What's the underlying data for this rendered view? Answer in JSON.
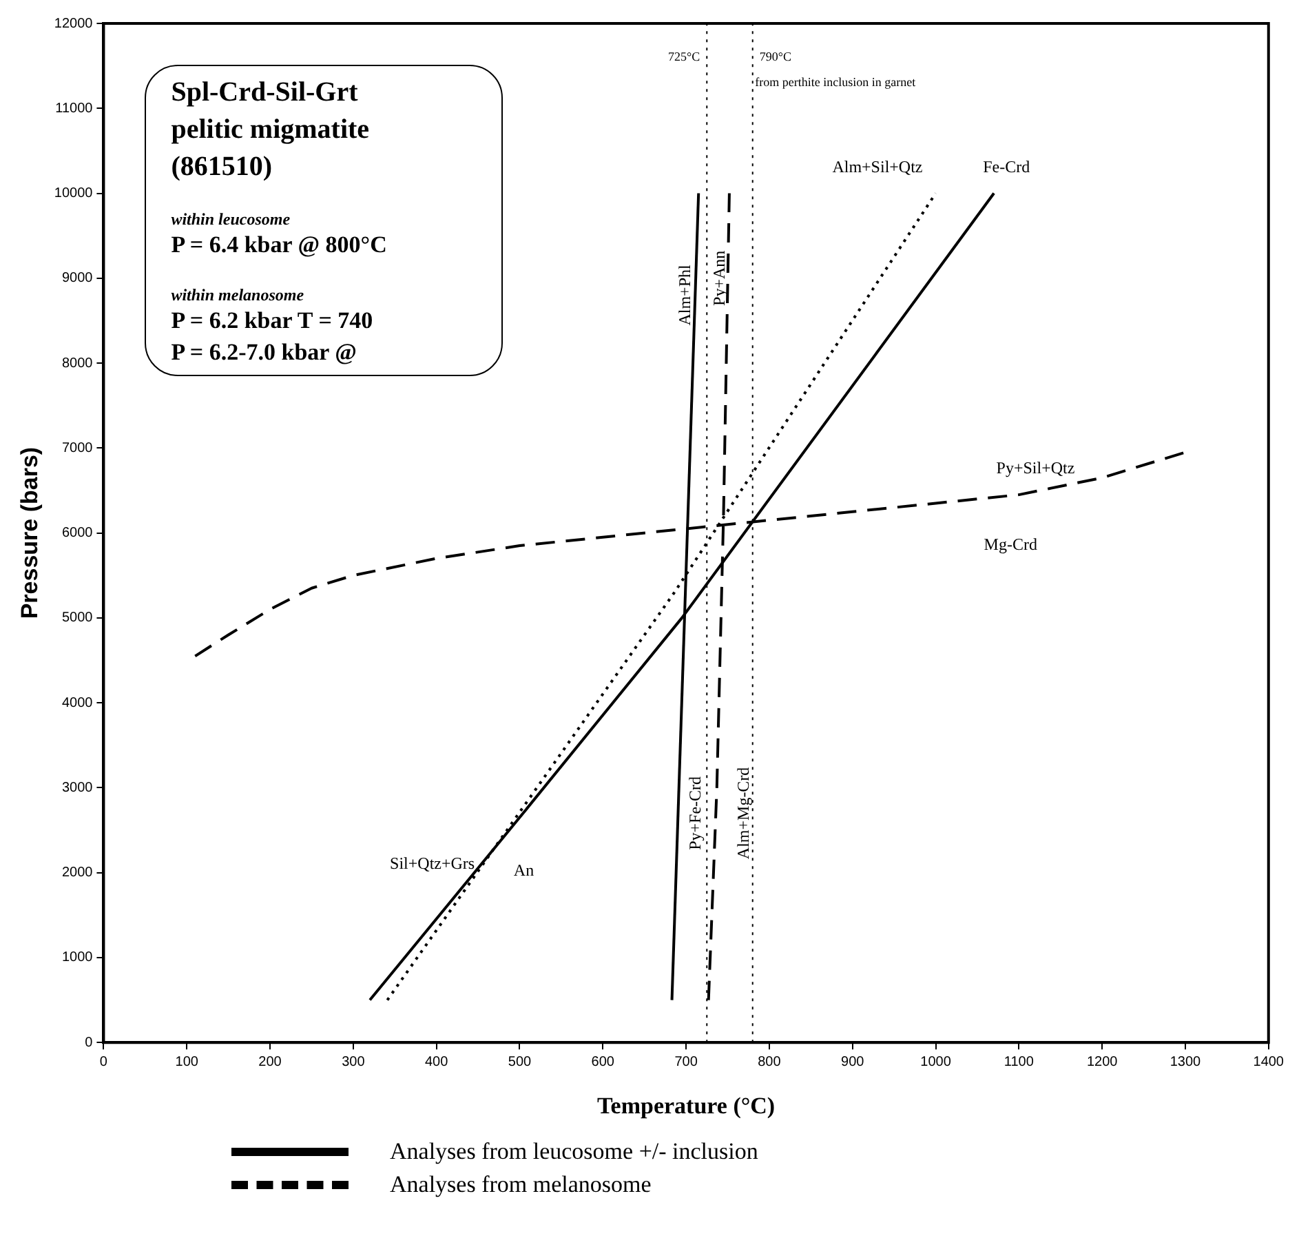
{
  "chart_data": {
    "type": "line",
    "xlabel": "Temperature (°C)",
    "ylabel": "Pressure (bars)",
    "xlim": [
      0,
      1400
    ],
    "xticks": [
      0,
      100,
      200,
      300,
      400,
      500,
      600,
      700,
      800,
      900,
      1000,
      1100,
      1200,
      1300,
      1400
    ],
    "ylim": [
      0,
      12000
    ],
    "yticks": [
      0,
      1000,
      2000,
      3000,
      4000,
      5000,
      6000,
      7000,
      8000,
      9000,
      10000,
      11000,
      12000
    ],
    "grid": false,
    "legend": "bottom",
    "marker": "none",
    "series": [
      {
        "name": "Analyses from leucosome +/- inclusion",
        "color": "#000000",
        "line_style": "solid",
        "x": [
          320,
          500,
          695,
          1070
        ],
        "values": [
          500,
          2650,
          5000,
          10000
        ]
      },
      {
        "color": "#000000",
        "line_style": "solid",
        "x": [
          683,
          715
        ],
        "values": [
          500,
          10000
        ]
      },
      {
        "color": "#000000",
        "line_style": "dotted",
        "x": [
          341,
          686,
          1000
        ],
        "values": [
          500,
          5300,
          10000
        ]
      },
      {
        "color": "#000000",
        "line_style": "dashed",
        "x": [
          727,
          737,
          745,
          752
        ],
        "values": [
          500,
          3000,
          6200,
          10000
        ]
      },
      {
        "name": "Analyses from melanosome",
        "color": "#000000",
        "line_style": "dashed",
        "x": [
          110,
          150,
          200,
          250,
          300,
          400,
          500,
          600,
          700,
          800,
          900,
          1000,
          1100,
          1200,
          1300
        ],
        "values": [
          4550,
          4800,
          5100,
          5350,
          5500,
          5700,
          5850,
          5950,
          6050,
          6150,
          6250,
          6350,
          6450,
          6650,
          6950
        ]
      }
    ],
    "ref_lines": [
      {
        "axis": "x",
        "value": 725,
        "label": "725°C",
        "line_style": "dotted",
        "color": "#000000"
      },
      {
        "axis": "x",
        "value": 780,
        "label": "790°C",
        "line_style": "dotted",
        "color": "#000000"
      }
    ],
    "annotations": [
      "Alm+Phl",
      "Py+Ann",
      "Py+Fe-Crd",
      "Alm+Mg-Crd",
      "Sil+Qtz+Grs",
      "An",
      "Alm+Sil+Qtz",
      "Fe-Crd",
      "Py+Sil+Qtz",
      "Mg-Crd",
      "from perthite inclusion in garnet",
      "Spl-Crd-Sil-Grt",
      "pelitic migmatite",
      "(861510)",
      "within leucosome",
      "P = 6.4 kbar @ 800°C",
      "within melanosome",
      "P = 6.2 kbar T = 740",
      "P = 6.2-7.0 kbar @"
    ]
  }
}
